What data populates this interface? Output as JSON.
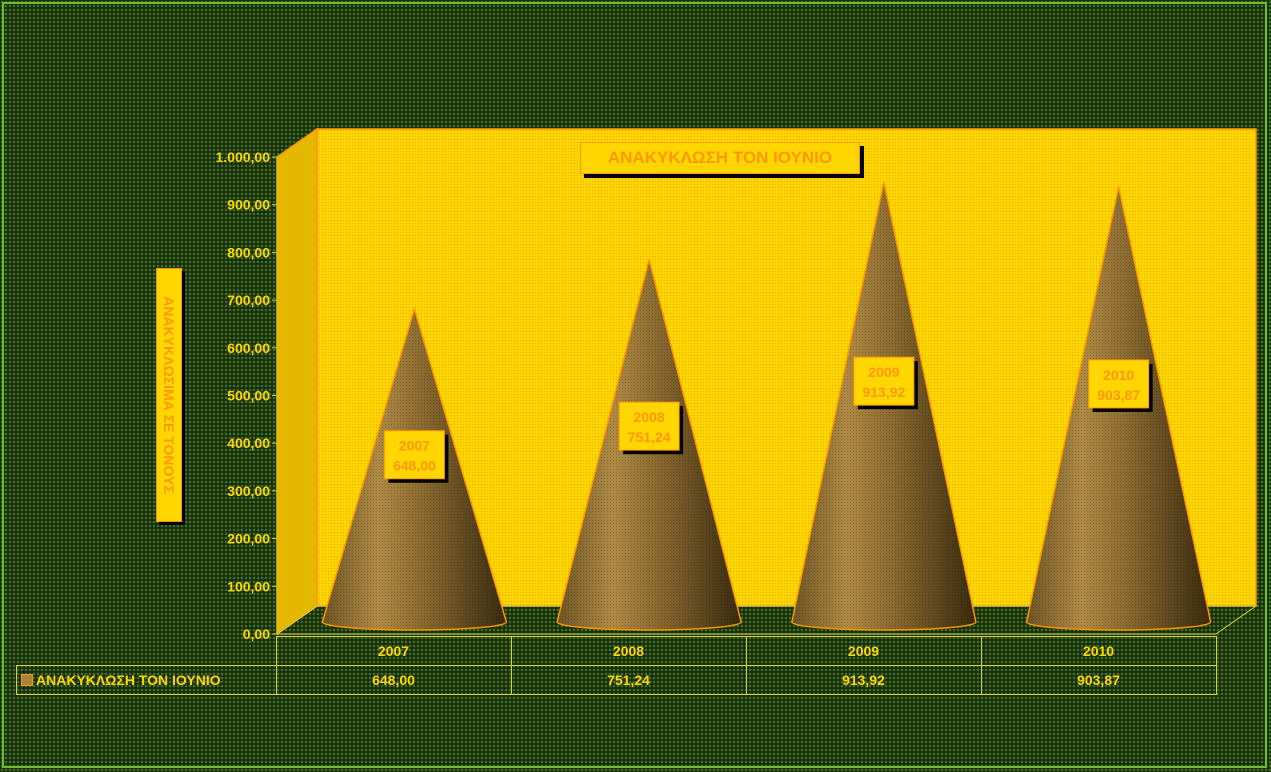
{
  "chart_data": {
    "type": "bar",
    "bar_shape": "cone",
    "title": "ΑΝΑΚΥΚΛΩΣΗ ΤΟΝ ΙΟΥΝΙΟ",
    "ylabel": "ΑΝΑΚΥΚΛΩΣΙΜΑ ΣΕ ΤΟΝΟΥΣ",
    "xlabel": "",
    "ylim": [
      0,
      1000
    ],
    "yticks": [
      "0,00",
      "100,00",
      "200,00",
      "300,00",
      "400,00",
      "500,00",
      "600,00",
      "700,00",
      "800,00",
      "900,00",
      "1.000,00"
    ],
    "categories": [
      "2007",
      "2008",
      "2009",
      "2010"
    ],
    "series": [
      {
        "name": "ΑΝΑΚΥΚΛΩΣΗ ΤΟΝ ΙΟΥΝΙΟ",
        "values": [
          648.0,
          751.24,
          913.92,
          903.87
        ],
        "value_labels": [
          "648,00",
          "751,24",
          "913,92",
          "903,87"
        ]
      }
    ],
    "data_table": true,
    "legend": "in-data-table",
    "colors": {
      "wall": "#ffd600",
      "cone": "#a9843f",
      "accent": "#ff9800",
      "text": "#ffd600"
    }
  }
}
